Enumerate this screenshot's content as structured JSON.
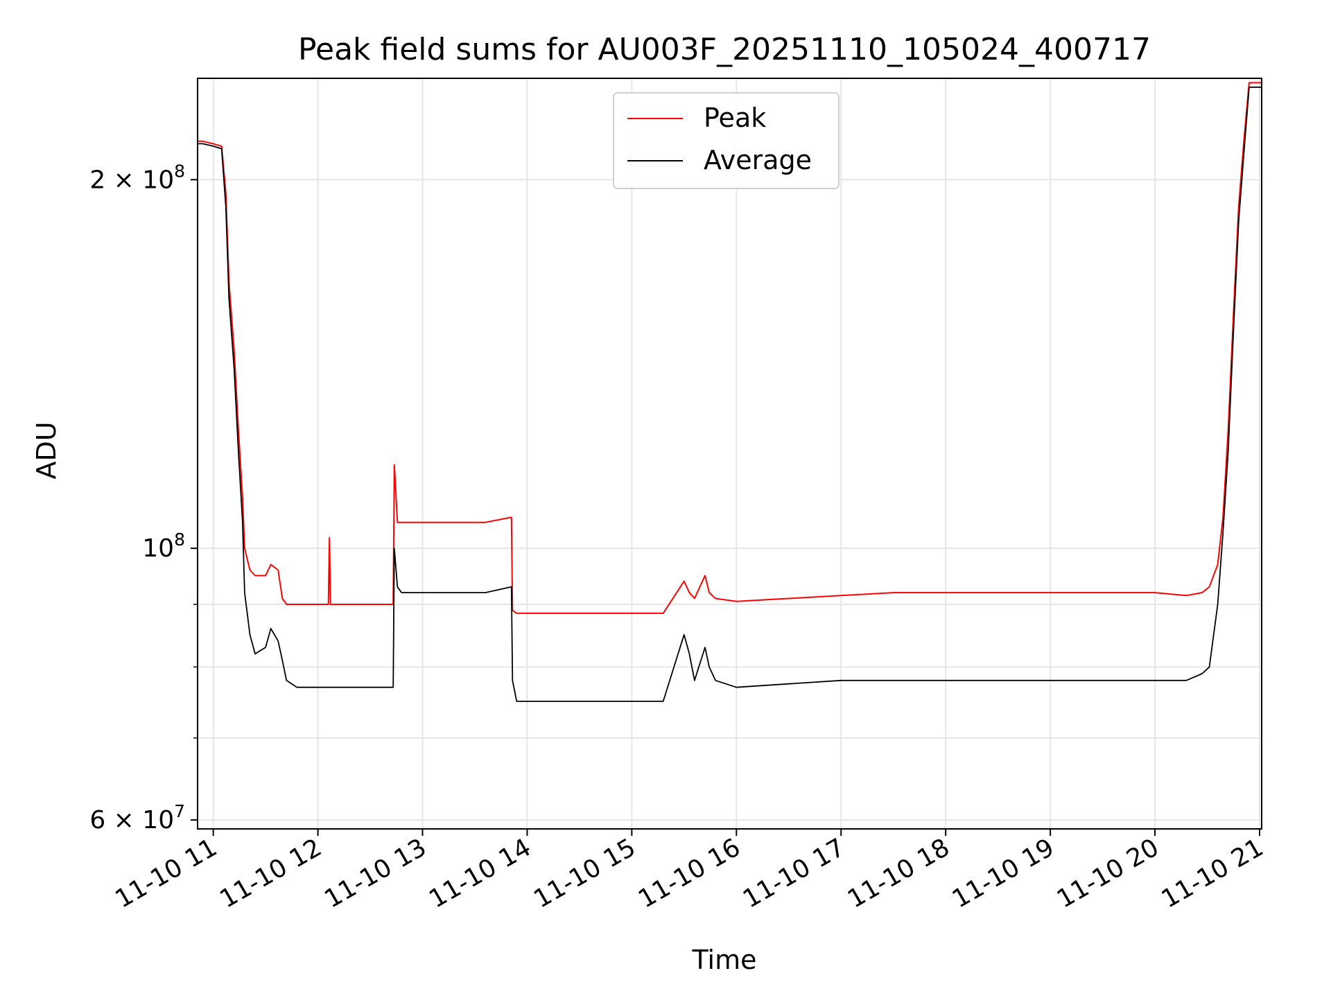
{
  "chart_data": {
    "type": "line",
    "title": "Peak field sums for AU003F_20251110_105024_400717",
    "xlabel": "Time",
    "ylabel": "ADU",
    "y_scale": "log",
    "xlim_hours": [
      10.85,
      21.02
    ],
    "ylim": [
      59000000,
      242000000
    ],
    "x_ticks": [
      {
        "value": 11,
        "label": "11-10 11"
      },
      {
        "value": 12,
        "label": "11-10 12"
      },
      {
        "value": 13,
        "label": "11-10 13"
      },
      {
        "value": 14,
        "label": "11-10 14"
      },
      {
        "value": 15,
        "label": "11-10 15"
      },
      {
        "value": 16,
        "label": "11-10 16"
      },
      {
        "value": 17,
        "label": "11-10 17"
      },
      {
        "value": 18,
        "label": "11-10 18"
      },
      {
        "value": 19,
        "label": "11-10 19"
      },
      {
        "value": 20,
        "label": "11-10 20"
      },
      {
        "value": 21,
        "label": "11-10 21"
      }
    ],
    "y_major_ticks": [
      {
        "value": 60000000,
        "base": "6 × 10",
        "exp": "7"
      },
      {
        "value": 100000000,
        "base": "10",
        "exp": "8"
      },
      {
        "value": 200000000,
        "base": "2 × 10",
        "exp": "8"
      }
    ],
    "y_minor_ticks": [
      70000000,
      80000000,
      90000000
    ],
    "grid": true,
    "legend_position": "top-center",
    "series": [
      {
        "name": "Peak",
        "color": "#ff0000",
        "x": [
          10.85,
          10.9,
          11.0,
          11.08,
          11.12,
          11.15,
          11.2,
          11.24,
          11.28,
          11.3,
          11.35,
          11.4,
          11.5,
          11.55,
          11.62,
          11.66,
          11.7,
          11.8,
          12.0,
          12.1,
          12.11,
          12.12,
          12.3,
          12.5,
          12.72,
          12.73,
          12.76,
          12.8,
          13.0,
          13.3,
          13.6,
          13.85,
          13.86,
          13.9,
          14.0,
          14.5,
          15.0,
          15.3,
          15.5,
          15.55,
          15.6,
          15.7,
          15.74,
          15.8,
          16.0,
          16.5,
          17.0,
          17.5,
          18.0,
          18.5,
          19.0,
          19.5,
          20.0,
          20.3,
          20.45,
          20.52,
          20.6,
          20.65,
          20.7,
          20.75,
          20.8,
          20.85,
          20.9,
          21.02
        ],
        "y": [
          215000000,
          215000000,
          214000000,
          213000000,
          195000000,
          165000000,
          145000000,
          125000000,
          110000000,
          100000000,
          96000000,
          95000000,
          95000000,
          97000000,
          96000000,
          91000000,
          90000000,
          90000000,
          90000000,
          90000000,
          102000000,
          90000000,
          90000000,
          90000000,
          90000000,
          117000000,
          105000000,
          105000000,
          105000000,
          105000000,
          105000000,
          106000000,
          89000000,
          88500000,
          88500000,
          88500000,
          88500000,
          88500000,
          94000000,
          92000000,
          91000000,
          95000000,
          92000000,
          91000000,
          90500000,
          91000000,
          91500000,
          92000000,
          92000000,
          92000000,
          92000000,
          92000000,
          92000000,
          91500000,
          92000000,
          93000000,
          97000000,
          106000000,
          125000000,
          155000000,
          190000000,
          215000000,
          240000000,
          240000000
        ]
      },
      {
        "name": "Average",
        "color": "#000000",
        "x": [
          10.85,
          10.9,
          11.0,
          11.08,
          11.12,
          11.15,
          11.2,
          11.24,
          11.28,
          11.3,
          11.35,
          11.4,
          11.5,
          11.55,
          11.62,
          11.66,
          11.7,
          11.8,
          12.0,
          12.3,
          12.5,
          12.72,
          12.73,
          12.76,
          12.8,
          13.0,
          13.3,
          13.6,
          13.85,
          13.86,
          13.9,
          14.0,
          14.5,
          15.0,
          15.3,
          15.5,
          15.55,
          15.6,
          15.7,
          15.74,
          15.8,
          16.0,
          16.5,
          17.0,
          17.5,
          18.0,
          18.5,
          19.0,
          19.5,
          20.0,
          20.3,
          20.45,
          20.52,
          20.6,
          20.65,
          20.7,
          20.75,
          20.8,
          20.85,
          20.9,
          21.02
        ],
        "y": [
          214000000,
          214000000,
          213000000,
          212000000,
          190000000,
          160000000,
          140000000,
          120000000,
          105000000,
          92000000,
          85000000,
          82000000,
          83000000,
          86000000,
          84000000,
          81000000,
          78000000,
          77000000,
          77000000,
          77000000,
          77000000,
          77000000,
          100000000,
          93000000,
          92000000,
          92000000,
          92000000,
          92000000,
          93000000,
          78000000,
          75000000,
          75000000,
          75000000,
          75000000,
          75000000,
          85000000,
          82000000,
          78000000,
          83000000,
          80000000,
          78000000,
          77000000,
          77500000,
          78000000,
          78000000,
          78000000,
          78000000,
          78000000,
          78000000,
          78000000,
          78000000,
          79000000,
          80000000,
          90000000,
          103000000,
          120000000,
          150000000,
          185000000,
          210000000,
          238000000,
          238000000
        ]
      }
    ]
  }
}
